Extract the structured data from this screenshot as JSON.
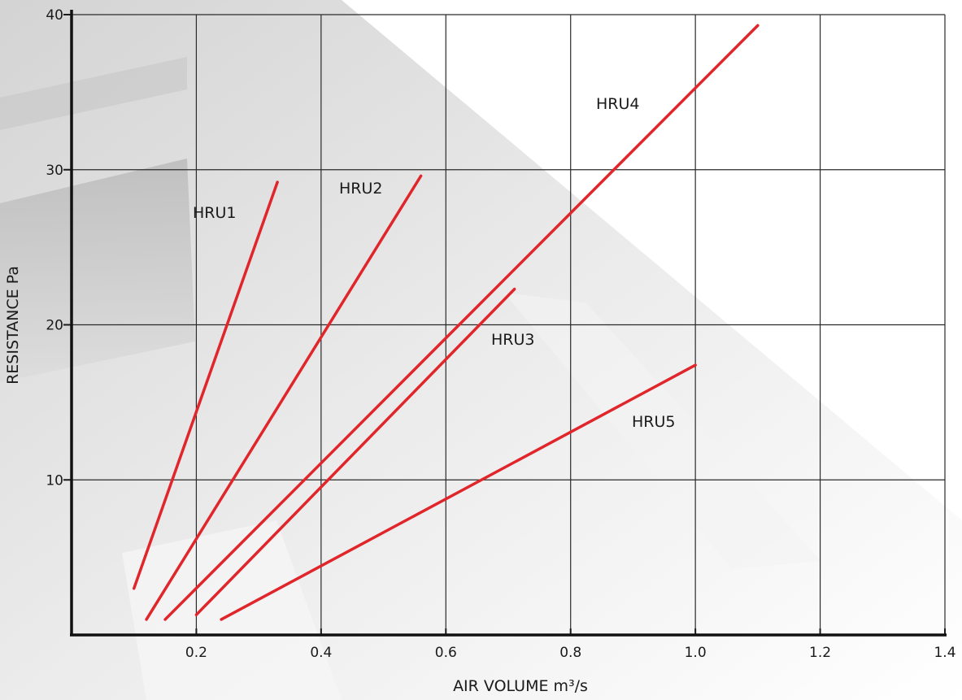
{
  "chart_data": {
    "type": "line",
    "xlabel": "AIR VOLUME m³/s",
    "ylabel": "RESISTANCE Pa",
    "xlim": [
      0,
      1.4
    ],
    "ylim": [
      0,
      40
    ],
    "x_ticks": [
      0.2,
      0.4,
      0.6,
      0.8,
      1.0,
      1.2,
      1.4
    ],
    "x_tick_labels": [
      "0.2",
      "0.4",
      "0.6",
      "0.8",
      "1.0",
      "1.2",
      "1.4"
    ],
    "y_ticks": [
      10,
      20,
      30,
      40
    ],
    "y_tick_labels": [
      "10",
      "20",
      "30",
      "40"
    ],
    "grid": true,
    "line_color": "#e0262b",
    "series": [
      {
        "name": "HRU1",
        "x": [
          0.1,
          0.33
        ],
        "y": [
          3.0,
          29.2
        ]
      },
      {
        "name": "HRU2",
        "x": [
          0.12,
          0.56
        ],
        "y": [
          1.0,
          29.6
        ]
      },
      {
        "name": "HRU3",
        "x": [
          0.2,
          0.71
        ],
        "y": [
          1.3,
          22.3
        ]
      },
      {
        "name": "HRU4",
        "x": [
          0.15,
          1.1
        ],
        "y": [
          1.0,
          39.3
        ]
      },
      {
        "name": "HRU5",
        "x": [
          0.24,
          1.0
        ],
        "y": [
          1.0,
          17.4
        ]
      }
    ]
  }
}
